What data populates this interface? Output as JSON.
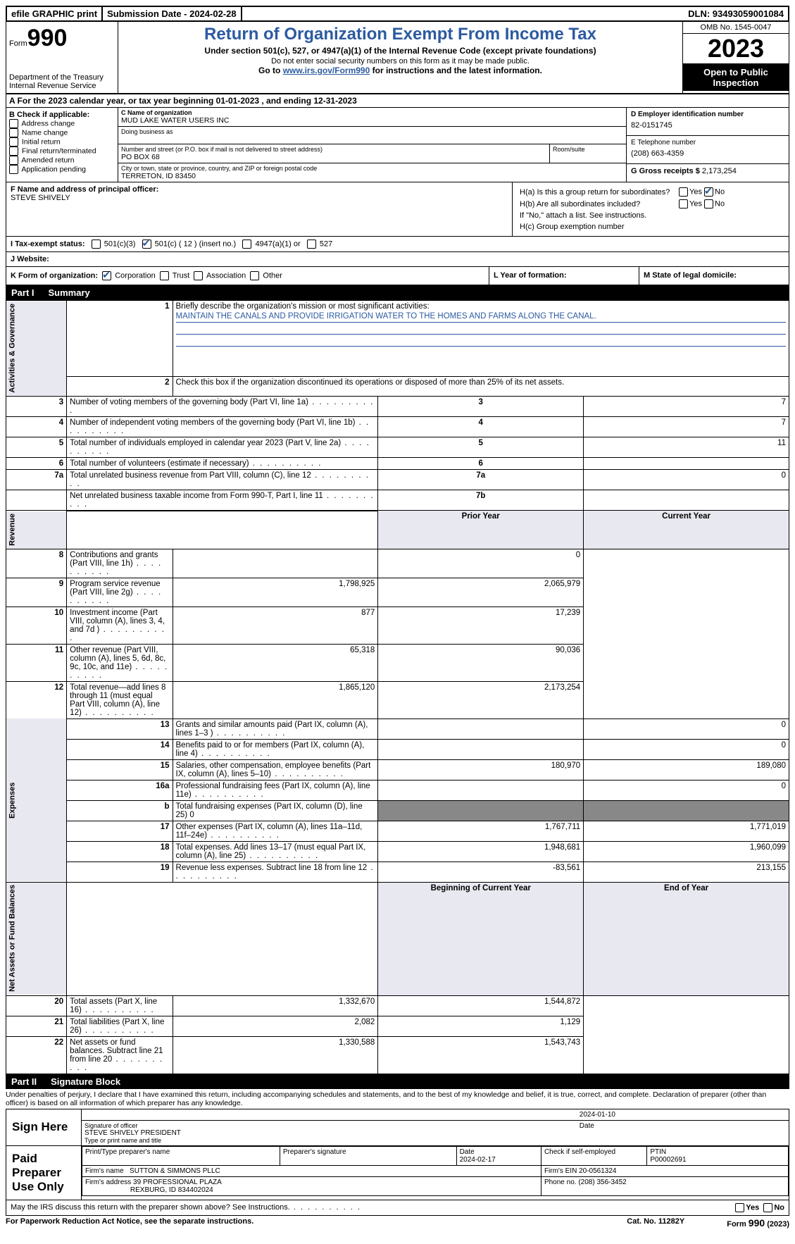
{
  "top": {
    "efile": "efile GRAPHIC print",
    "submission": "Submission Date - 2024-02-28",
    "dln": "DLN: 93493059001084"
  },
  "header": {
    "form_word": "Form",
    "form_num": "990",
    "title": "Return of Organization Exempt From Income Tax",
    "subtitle": "Under section 501(c), 527, or 4947(a)(1) of the Internal Revenue Code (except private foundations)",
    "note": "Do not enter social security numbers on this form as it may be made public.",
    "goto_prefix": "Go to ",
    "goto_link": "www.irs.gov/Form990",
    "goto_suffix": " for instructions and the latest information.",
    "dept": "Department of the Treasury",
    "irs": "Internal Revenue Service",
    "omb": "OMB No. 1545-0047",
    "year": "2023",
    "open": "Open to Public Inspection"
  },
  "section_a": "A For the 2023 calendar year, or tax year beginning 01-01-2023    , and ending 12-31-2023",
  "section_b": {
    "hdr": "B Check if applicable:",
    "items": [
      "Address change",
      "Name change",
      "Initial return",
      "Final return/terminated",
      "Amended return",
      "Application pending"
    ]
  },
  "section_c": {
    "name_lbl": "C Name of organization",
    "name": "MUD LAKE WATER USERS INC",
    "dba_lbl": "Doing business as",
    "addr_lbl": "Number and street (or P.O. box if mail is not delivered to street address)",
    "room_lbl": "Room/suite",
    "addr": "PO BOX 68",
    "city_lbl": "City or town, state or province, country, and ZIP or foreign postal code",
    "city": "TERRETON, ID  83450"
  },
  "section_d": {
    "ein_lbl": "D Employer identification number",
    "ein": "82-0151745",
    "phone_lbl": "E Telephone number",
    "phone": "(208) 663-4359",
    "gross_lbl": "G Gross receipts $",
    "gross": "2,173,254"
  },
  "section_f": {
    "lbl": "F  Name and address of principal officer:",
    "name": "STEVE SHIVELY"
  },
  "section_h": {
    "ha": "H(a)  Is this a group return for subordinates?",
    "hb": "H(b)  Are all subordinates included?",
    "hb_note": "If \"No,\" attach a list. See instructions.",
    "hc": "H(c)  Group exemption number"
  },
  "section_i": {
    "lbl": "I    Tax-exempt status:",
    "opts": [
      "501(c)(3)",
      "501(c) ( 12 ) (insert no.)",
      "4947(a)(1) or",
      "527"
    ]
  },
  "section_j": {
    "lbl": "J   Website:"
  },
  "section_k": {
    "lbl": "K Form of organization:",
    "opts": [
      "Corporation",
      "Trust",
      "Association",
      "Other"
    ],
    "l": "L Year of formation:",
    "m": "M State of legal domicile:"
  },
  "part1": {
    "label": "Part I",
    "title": "Summary"
  },
  "summary": {
    "q1": "Briefly describe the organization's mission or most significant activities:",
    "mission": "MAINTAIN THE CANALS AND PROVIDE IRRIGATION WATER TO THE HOMES AND FARMS ALONG THE CANAL.",
    "q2": "Check this box      if the organization discontinued its operations or disposed of more than 25% of its net assets.",
    "governance_rows": [
      {
        "n": "3",
        "txt": "Number of voting members of the governing body (Part VI, line 1a)",
        "box": "3",
        "val": "7"
      },
      {
        "n": "4",
        "txt": "Number of independent voting members of the governing body (Part VI, line 1b)",
        "box": "4",
        "val": "7"
      },
      {
        "n": "5",
        "txt": "Total number of individuals employed in calendar year 2023 (Part V, line 2a)",
        "box": "5",
        "val": "11"
      },
      {
        "n": "6",
        "txt": "Total number of volunteers (estimate if necessary)",
        "box": "6",
        "val": ""
      },
      {
        "n": "7a",
        "txt": "Total unrelated business revenue from Part VIII, column (C), line 12",
        "box": "7a",
        "val": "0"
      },
      {
        "n": "",
        "txt": "Net unrelated business taxable income from Form 990-T, Part I, line 11",
        "box": "7b",
        "val": ""
      }
    ],
    "prior_hdr": "Prior Year",
    "current_hdr": "Current Year",
    "revenue_rows": [
      {
        "n": "8",
        "txt": "Contributions and grants (Part VIII, line 1h)",
        "py": "",
        "cy": "0"
      },
      {
        "n": "9",
        "txt": "Program service revenue (Part VIII, line 2g)",
        "py": "1,798,925",
        "cy": "2,065,979"
      },
      {
        "n": "10",
        "txt": "Investment income (Part VIII, column (A), lines 3, 4, and 7d )",
        "py": "877",
        "cy": "17,239"
      },
      {
        "n": "11",
        "txt": "Other revenue (Part VIII, column (A), lines 5, 6d, 8c, 9c, 10c, and 11e)",
        "py": "65,318",
        "cy": "90,036"
      },
      {
        "n": "12",
        "txt": "Total revenue—add lines 8 through 11 (must equal Part VIII, column (A), line 12)",
        "py": "1,865,120",
        "cy": "2,173,254"
      }
    ],
    "expense_rows": [
      {
        "n": "13",
        "txt": "Grants and similar amounts paid (Part IX, column (A), lines 1–3 )",
        "py": "",
        "cy": "0"
      },
      {
        "n": "14",
        "txt": "Benefits paid to or for members (Part IX, column (A), line 4)",
        "py": "",
        "cy": "0"
      },
      {
        "n": "15",
        "txt": "Salaries, other compensation, employee benefits (Part IX, column (A), lines 5–10)",
        "py": "180,970",
        "cy": "189,080"
      },
      {
        "n": "16a",
        "txt": "Professional fundraising fees (Part IX, column (A), line 11e)",
        "py": "",
        "cy": "0"
      },
      {
        "n": "b",
        "txt": "Total fundraising expenses (Part IX, column (D), line 25) 0",
        "py": "GRAY",
        "cy": "GRAY"
      },
      {
        "n": "17",
        "txt": "Other expenses (Part IX, column (A), lines 11a–11d, 11f–24e)",
        "py": "1,767,711",
        "cy": "1,771,019"
      },
      {
        "n": "18",
        "txt": "Total expenses. Add lines 13–17 (must equal Part IX, column (A), line 25)",
        "py": "1,948,681",
        "cy": "1,960,099"
      },
      {
        "n": "19",
        "txt": "Revenue less expenses. Subtract line 18 from line 12",
        "py": "-83,561",
        "cy": "213,155"
      }
    ],
    "begin_hdr": "Beginning of Current Year",
    "end_hdr": "End of Year",
    "net_rows": [
      {
        "n": "20",
        "txt": "Total assets (Part X, line 16)",
        "py": "1,332,670",
        "cy": "1,544,872"
      },
      {
        "n": "21",
        "txt": "Total liabilities (Part X, line 26)",
        "py": "2,082",
        "cy": "1,129"
      },
      {
        "n": "22",
        "txt": "Net assets or fund balances. Subtract line 21 from line 20",
        "py": "1,330,588",
        "cy": "1,543,743"
      }
    ],
    "vlabels": {
      "gov": "Activities & Governance",
      "rev": "Revenue",
      "exp": "Expenses",
      "net": "Net Assets or Fund Balances"
    }
  },
  "part2": {
    "label": "Part II",
    "title": "Signature Block"
  },
  "penalties": "Under penalties of perjury, I declare that I have examined this return, including accompanying schedules and statements, and to the best of my knowledge and belief, it is true, correct, and complete. Declaration of preparer (other than officer) is based on all information of which preparer has any knowledge.",
  "sign": {
    "here": "Sign Here",
    "sig_officer": "Signature of officer",
    "officer_name": "STEVE SHIVELY PRESIDENT",
    "type_name": "Type or print name and title",
    "date": "Date",
    "sig_date": "2024-01-10"
  },
  "preparer": {
    "label": "Paid Preparer Use Only",
    "print_name": "Print/Type preparer's name",
    "prep_sig": "Preparer's signature",
    "date_lbl": "Date",
    "date": "2024-02-17",
    "check_self": "Check        if self-employed",
    "ptin_lbl": "PTIN",
    "ptin": "P00002691",
    "firm_name_lbl": "Firm's name",
    "firm_name": "SUTTON & SIMMONS PLLC",
    "firm_ein_lbl": "Firm's EIN",
    "firm_ein": "20-0561324",
    "firm_addr_lbl": "Firm's address",
    "firm_addr1": "39 PROFESSIONAL PLAZA",
    "firm_addr2": "REXBURG, ID  834402024",
    "phone_lbl": "Phone no.",
    "phone": "(208) 356-3452"
  },
  "discuss": "May the IRS discuss this return with the preparer shown above? See Instructions.",
  "footer": {
    "paperwork": "For Paperwork Reduction Act Notice, see the separate instructions.",
    "cat": "Cat. No. 11282Y",
    "form": "Form 990 (2023)"
  },
  "colors": {
    "link": "#2c5aa0",
    "vert_bg": "#e8e8f0"
  }
}
